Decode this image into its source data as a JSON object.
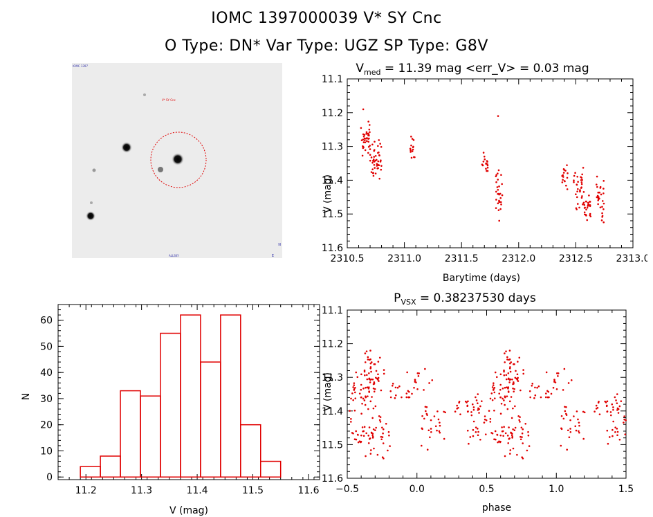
{
  "header": {
    "title": "IOMC 1397000039    V* SY Cnc",
    "subtitle": "O Type: DN*  Var Type: UGZ  SP Type: G8V"
  },
  "colors": {
    "data": "#e00000",
    "axis": "#000000"
  },
  "image_panel": {
    "kind": "star field finder chart",
    "tiny_labels": [
      "IOMC 1397",
      "V* SY Cnc",
      "ALLSKY",
      "N",
      "E"
    ]
  },
  "chart_data": [
    {
      "id": "lightcurve",
      "type": "scatter",
      "title_main": "V",
      "title_sub": "med",
      "title_rest": " = 11.39 mag <err_V> = 0.03 mag",
      "xlabel": "Barytime (days)",
      "ylabel": "V (mag)",
      "xlim": [
        2310.5,
        2313.0
      ],
      "ylim": [
        11.6,
        11.1
      ],
      "xticks": [
        2310.5,
        2311.0,
        2311.5,
        2312.0,
        2312.5,
        2313.0
      ],
      "xtick_labels": [
        "2310.5",
        "2311.0",
        "2311.5",
        "2312.0",
        "2312.5",
        "2313.0"
      ],
      "yticks": [
        11.1,
        11.2,
        11.3,
        11.4,
        11.5,
        11.6
      ],
      "ytick_labels": [
        "11.1",
        "11.2",
        "11.3",
        "11.4",
        "11.5",
        "11.6"
      ],
      "groups": [
        {
          "x0": 2310.62,
          "x1": 2310.7,
          "ylo": 11.2,
          "yhi": 11.36,
          "n": 38
        },
        {
          "x0": 2310.7,
          "x1": 2310.8,
          "ylo": 11.27,
          "yhi": 11.41,
          "n": 46
        },
        {
          "x0": 2311.05,
          "x1": 2311.09,
          "ylo": 11.26,
          "yhi": 11.35,
          "n": 14
        },
        {
          "x0": 2311.68,
          "x1": 2311.73,
          "ylo": 11.31,
          "yhi": 11.39,
          "n": 18
        },
        {
          "x0": 2311.8,
          "x1": 2311.86,
          "ylo": 11.36,
          "yhi": 11.53,
          "n": 28
        },
        {
          "x0": 2312.38,
          "x1": 2312.43,
          "ylo": 11.34,
          "yhi": 11.43,
          "n": 16
        },
        {
          "x0": 2312.48,
          "x1": 2312.57,
          "ylo": 11.35,
          "yhi": 11.51,
          "n": 34
        },
        {
          "x0": 2312.57,
          "x1": 2312.63,
          "ylo": 11.43,
          "yhi": 11.52,
          "n": 26
        },
        {
          "x0": 2312.68,
          "x1": 2312.75,
          "ylo": 11.37,
          "yhi": 11.55,
          "n": 30
        }
      ],
      "outliers": [
        [
          2310.64,
          11.19
        ],
        [
          2311.82,
          11.21
        ],
        [
          2311.83,
          11.52
        ]
      ]
    },
    {
      "id": "histogram",
      "type": "bar",
      "xlabel": "V (mag)",
      "ylabel": "N",
      "xlim": [
        11.15,
        11.62
      ],
      "ylim": [
        -1,
        66
      ],
      "xticks": [
        11.2,
        11.3,
        11.4,
        11.5,
        11.6
      ],
      "xtick_labels": [
        "11.2",
        "11.3",
        "11.4",
        "11.5",
        "11.6"
      ],
      "yticks": [
        0,
        10,
        20,
        30,
        40,
        50,
        60
      ],
      "ytick_labels": [
        "0",
        "10",
        "20",
        "30",
        "40",
        "50",
        "60"
      ],
      "bin_edges": [
        11.19,
        11.226,
        11.262,
        11.298,
        11.334,
        11.37,
        11.406,
        11.442,
        11.478,
        11.514,
        11.55
      ],
      "values": [
        4,
        8,
        33,
        31,
        55,
        62,
        44,
        62,
        20,
        6
      ]
    },
    {
      "id": "phased",
      "type": "scatter",
      "title_main": "P",
      "title_sub": "VSX",
      "title_rest": " = 0.38237530 days",
      "xlabel": "phase",
      "ylabel": "V (mag)",
      "xlim": [
        -0.5,
        1.5
      ],
      "ylim": [
        11.6,
        11.1
      ],
      "xticks": [
        -0.5,
        0.0,
        0.5,
        1.0,
        1.5
      ],
      "xtick_labels": [
        "−0.5",
        "0.0",
        "0.5",
        "1.0",
        "1.5"
      ],
      "yticks": [
        11.1,
        11.2,
        11.3,
        11.4,
        11.5,
        11.6
      ],
      "ytick_labels": [
        "11.1",
        "11.2",
        "11.3",
        "11.4",
        "11.5",
        "11.6"
      ],
      "period_repeat": 1.0
    }
  ]
}
